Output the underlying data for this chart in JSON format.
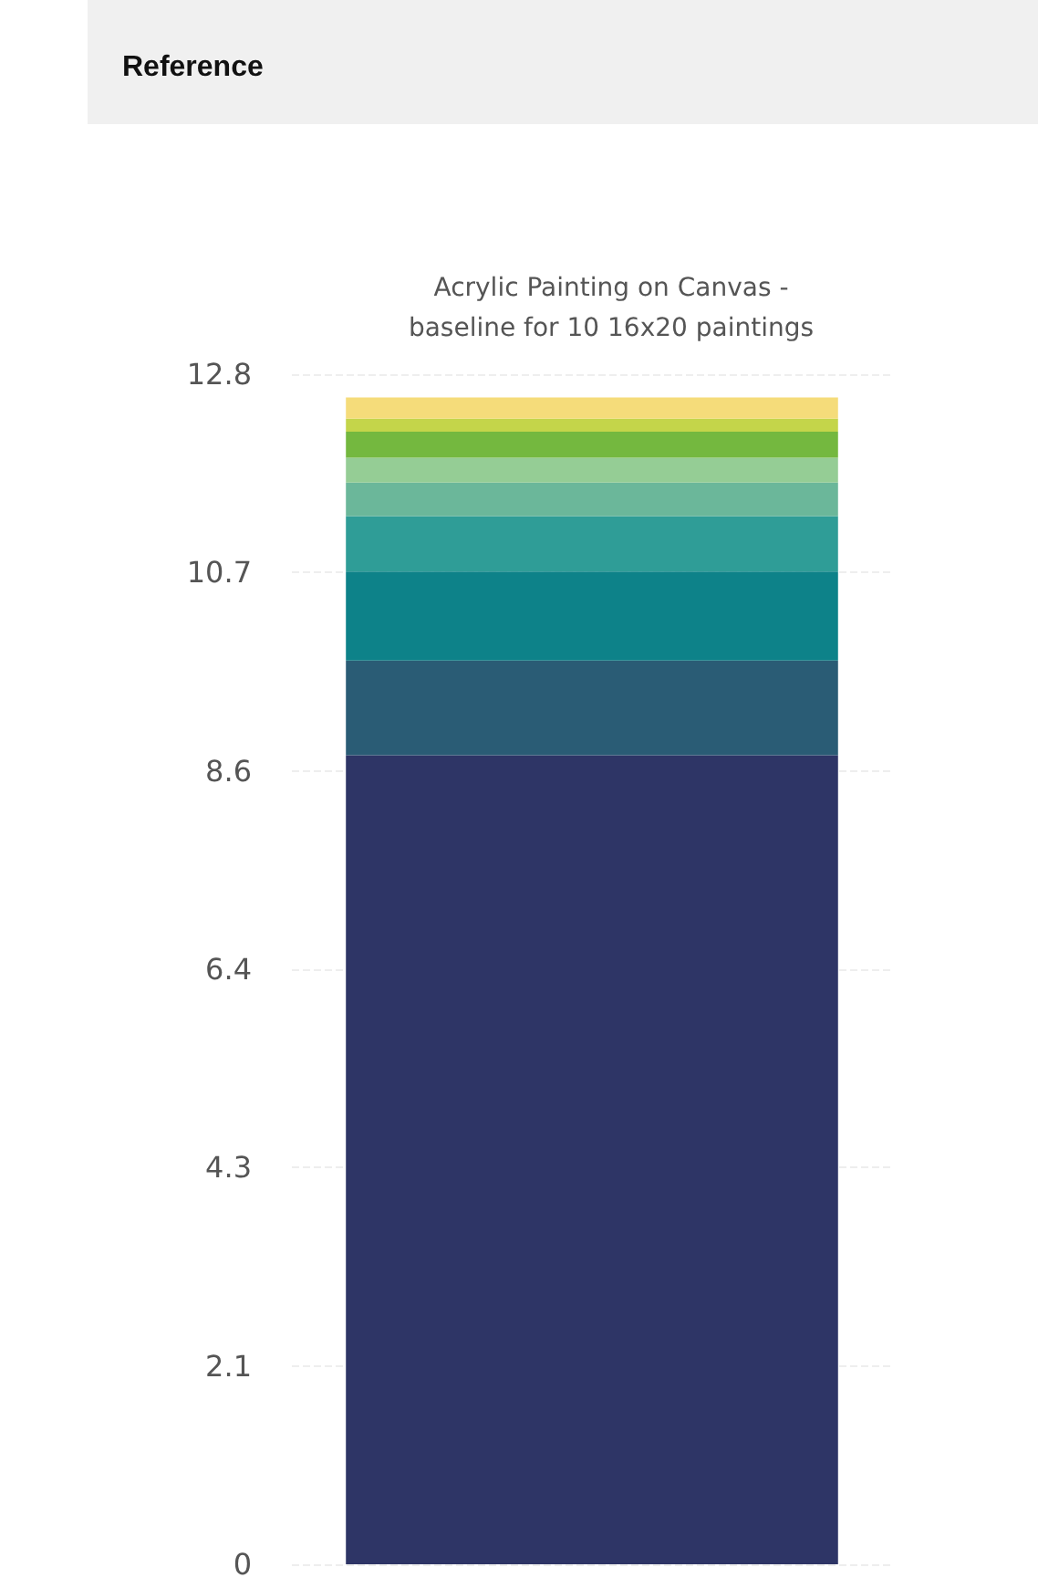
{
  "chart_data": {
    "type": "bar",
    "title": "Reference",
    "subtitle": "Acrylic Painting on Canvas -\nbaseline for 10 16x20 paintings",
    "categories": [
      null
    ],
    "stacked": true,
    "series": [
      {
        "color": "#2e3566",
        "values": [
          8.73
        ]
      },
      {
        "color": "#2a5c75",
        "values": [
          1.02
        ]
      },
      {
        "color": "#0d8289",
        "values": [
          0.96
        ]
      },
      {
        "color": "#2f9d97",
        "values": [
          0.6
        ]
      },
      {
        "color": "#6bb79a",
        "values": [
          0.36
        ]
      },
      {
        "color": "#95cd95",
        "values": [
          0.27
        ]
      },
      {
        "color": "#74b83f",
        "values": [
          0.28
        ]
      },
      {
        "color": "#c4d54a",
        "values": [
          0.14
        ]
      },
      {
        "color": "#f5dc7a",
        "values": [
          0.23
        ]
      }
    ],
    "ylim": [
      0,
      12.84
    ],
    "yticks": [
      0,
      {
        "value": 2.14,
        "label": "2.1"
      },
      {
        "value": 4.28,
        "label": "4.3"
      },
      {
        "value": 6.42,
        "label": "6.4"
      },
      {
        "value": 8.56,
        "label": "8.6"
      },
      {
        "value": 10.7,
        "label": "10.7"
      },
      {
        "value": 12.84,
        "label": "12.8"
      }
    ],
    "grid": "y"
  }
}
